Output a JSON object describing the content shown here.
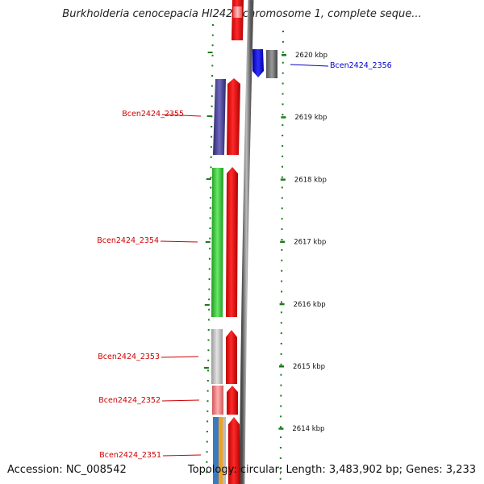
{
  "title": "Burkholderia cenocepacia HI2424 chromosome 1, complete seque...",
  "footer": {
    "accession": "Accession: NC_008542",
    "summary": "Topology: circular; Length: 3,483,902 bp; Genes: 3,233"
  },
  "colors": {
    "background": "#ffffff",
    "tick_green": "#1a7a1a",
    "reverse_strand_red": "#ff0000",
    "forward_strand_blue": "#0000ff",
    "label_red": "#d00000",
    "label_blue": "#0000cc",
    "backbone_gray": "#7a7a7a"
  },
  "scale_ticks": [
    {
      "kbp": 2620,
      "label": "2620 kbp"
    },
    {
      "kbp": 2619,
      "label": "2619 kbp"
    },
    {
      "kbp": 2618,
      "label": "2618 kbp"
    },
    {
      "kbp": 2617,
      "label": "2617 kbp"
    },
    {
      "kbp": 2616,
      "label": "2616 kbp"
    },
    {
      "kbp": 2615,
      "label": "2615 kbp"
    },
    {
      "kbp": 2614,
      "label": "2614 kbp"
    }
  ],
  "genes": [
    {
      "label": "Bcen2424_2355",
      "strand": "reverse",
      "color": "#4b4594"
    },
    {
      "label": "Bcen2424_2354",
      "strand": "reverse",
      "color": "#3ccb3c"
    },
    {
      "label": "Bcen2424_2353",
      "strand": "reverse",
      "color": "#c8c8c8"
    },
    {
      "label": "Bcen2424_2352",
      "strand": "reverse",
      "color": "#f08080"
    },
    {
      "label": "Bcen2424_2351",
      "strand": "reverse",
      "color": "#3a7abf"
    },
    {
      "label": "Bcen2424_2356",
      "strand": "forward",
      "color": "#0000ff"
    }
  ]
}
